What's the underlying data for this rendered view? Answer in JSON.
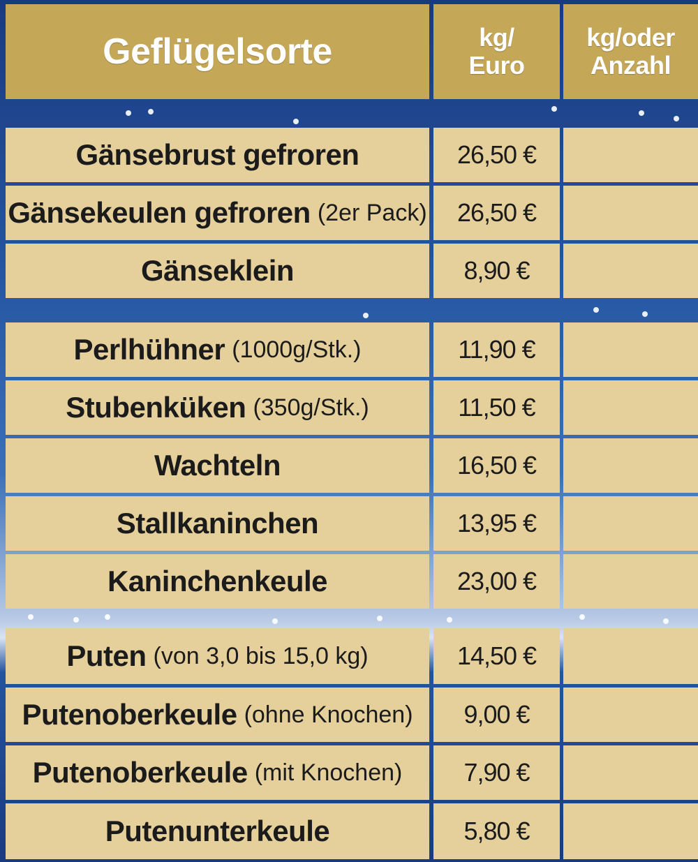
{
  "header": {
    "col_name": "Geflügelsorte",
    "col_price_line1": "kg/",
    "col_price_line2": "Euro",
    "col_qty_line1": "kg/oder",
    "col_qty_line2": "Anzahl"
  },
  "colors": {
    "header_bg": "#c5a758",
    "cell_bg": "#e5d09b",
    "background": "#1d3f86",
    "header_text": "#ffffff"
  },
  "rows": [
    {
      "name": "Gänsebrust gefroren",
      "note": "",
      "price": "26,50 €",
      "qty": ""
    },
    {
      "name": "Gänsekeulen gefroren",
      "note": "(2er Pack)",
      "price": "26,50 €",
      "qty": ""
    },
    {
      "name": "Gänseklein",
      "note": "",
      "price": "8,90 €",
      "qty": ""
    },
    {
      "name": "Perlhühner",
      "note": "(1000g/Stk.)",
      "price": "11,90 €",
      "qty": ""
    },
    {
      "name": "Stubenküken",
      "note": "(350g/Stk.)",
      "price": "11,50 €",
      "qty": ""
    },
    {
      "name": "Wachteln",
      "note": "",
      "price": "16,50 €",
      "qty": ""
    },
    {
      "name": "Stallkaninchen",
      "note": "",
      "price": "13,95 €",
      "qty": ""
    },
    {
      "name": "Kaninchenkeule",
      "note": "",
      "price": "23,00 €",
      "qty": ""
    },
    {
      "name": "Puten",
      "note": "(von 3,0 bis 15,0 kg)",
      "price": "14,50 €",
      "qty": ""
    },
    {
      "name": "Putenoberkeule",
      "note": "(ohne Knochen)",
      "price": "9,00 €",
      "qty": ""
    },
    {
      "name": "Putenoberkeule",
      "note": "(mit Knochen)",
      "price": "7,90 €",
      "qty": ""
    },
    {
      "name": "Putenunterkeule",
      "note": "",
      "price": "5,80 €",
      "qty": ""
    }
  ]
}
